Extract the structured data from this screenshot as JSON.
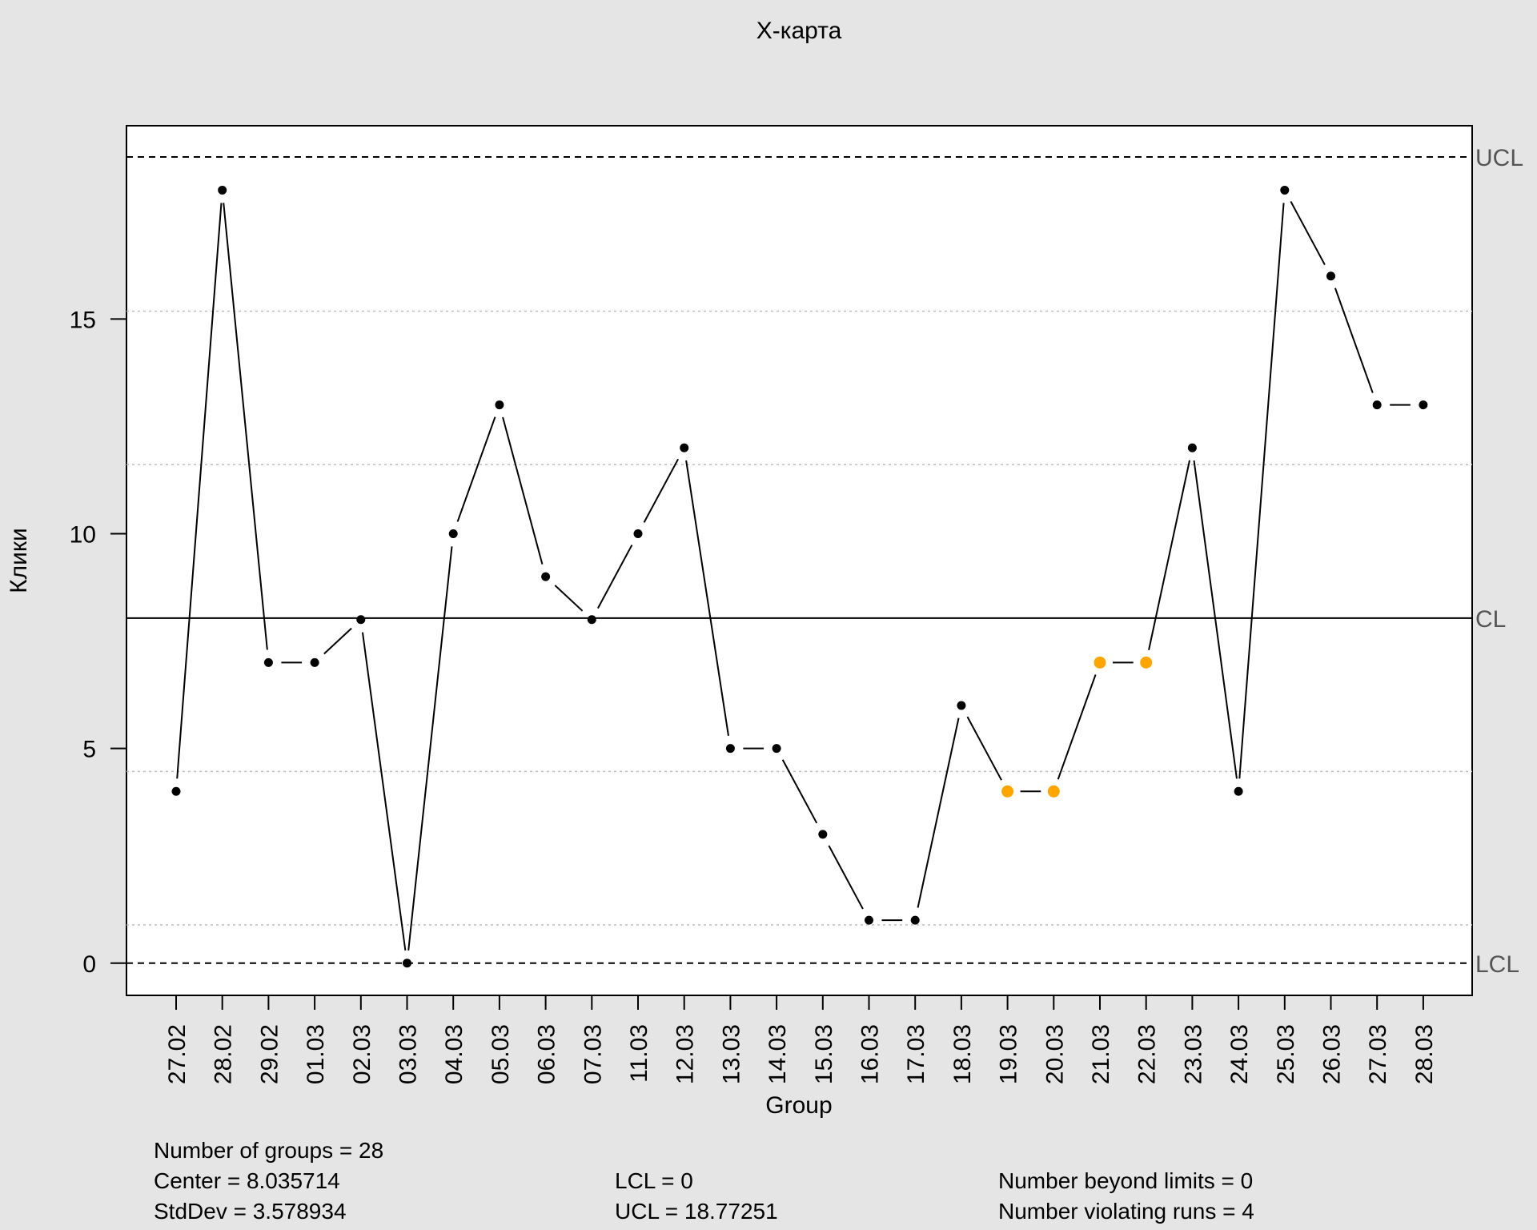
{
  "chart_data": {
    "type": "line",
    "title": "X-карта",
    "xlabel": "Group",
    "ylabel": "Клики",
    "categories": [
      "27.02",
      "28.02",
      "29.02",
      "01.03",
      "02.03",
      "03.03",
      "04.03",
      "05.03",
      "06.03",
      "07.03",
      "11.03",
      "12.03",
      "13.03",
      "14.03",
      "15.03",
      "16.03",
      "17.03",
      "18.03",
      "19.03",
      "20.03",
      "21.03",
      "22.03",
      "23.03",
      "24.03",
      "25.03",
      "26.03",
      "27.03",
      "28.03"
    ],
    "values": [
      4,
      18,
      7,
      7,
      8,
      0,
      10,
      13,
      9,
      8,
      10,
      12,
      5,
      5,
      3,
      1,
      1,
      6,
      4,
      4,
      7,
      7,
      12,
      4,
      18,
      16,
      13,
      13
    ],
    "violating_indices": [
      18,
      19,
      20,
      21
    ],
    "yticks": [
      0,
      5,
      10,
      15
    ],
    "ylim": [
      -0.75,
      19.5
    ],
    "center": 8.035714,
    "ucl": 18.77251,
    "lcl": 0,
    "sigma_lines": [
      0.8905,
      4.4631,
      11.6083,
      15.1809
    ],
    "limit_labels": {
      "ucl": "UCL",
      "cl": "CL",
      "lcl": "LCL"
    },
    "colors": {
      "point": "#000000",
      "violation": "#ffa500",
      "line": "#000000",
      "grid": "#bebebe",
      "plot_bg": "#ffffff",
      "page_bg": "#e5e5e5",
      "limit_label": "#555555"
    },
    "grid": true
  },
  "stats": {
    "groups": "Number of groups = 28",
    "center": "Center = 8.035714",
    "stddev": "StdDev = 3.578934",
    "lcl": "LCL = 0",
    "ucl": "UCL = 18.77251",
    "beyond": "Number beyond limits = 0",
    "violating": "Number violating runs = 4"
  }
}
